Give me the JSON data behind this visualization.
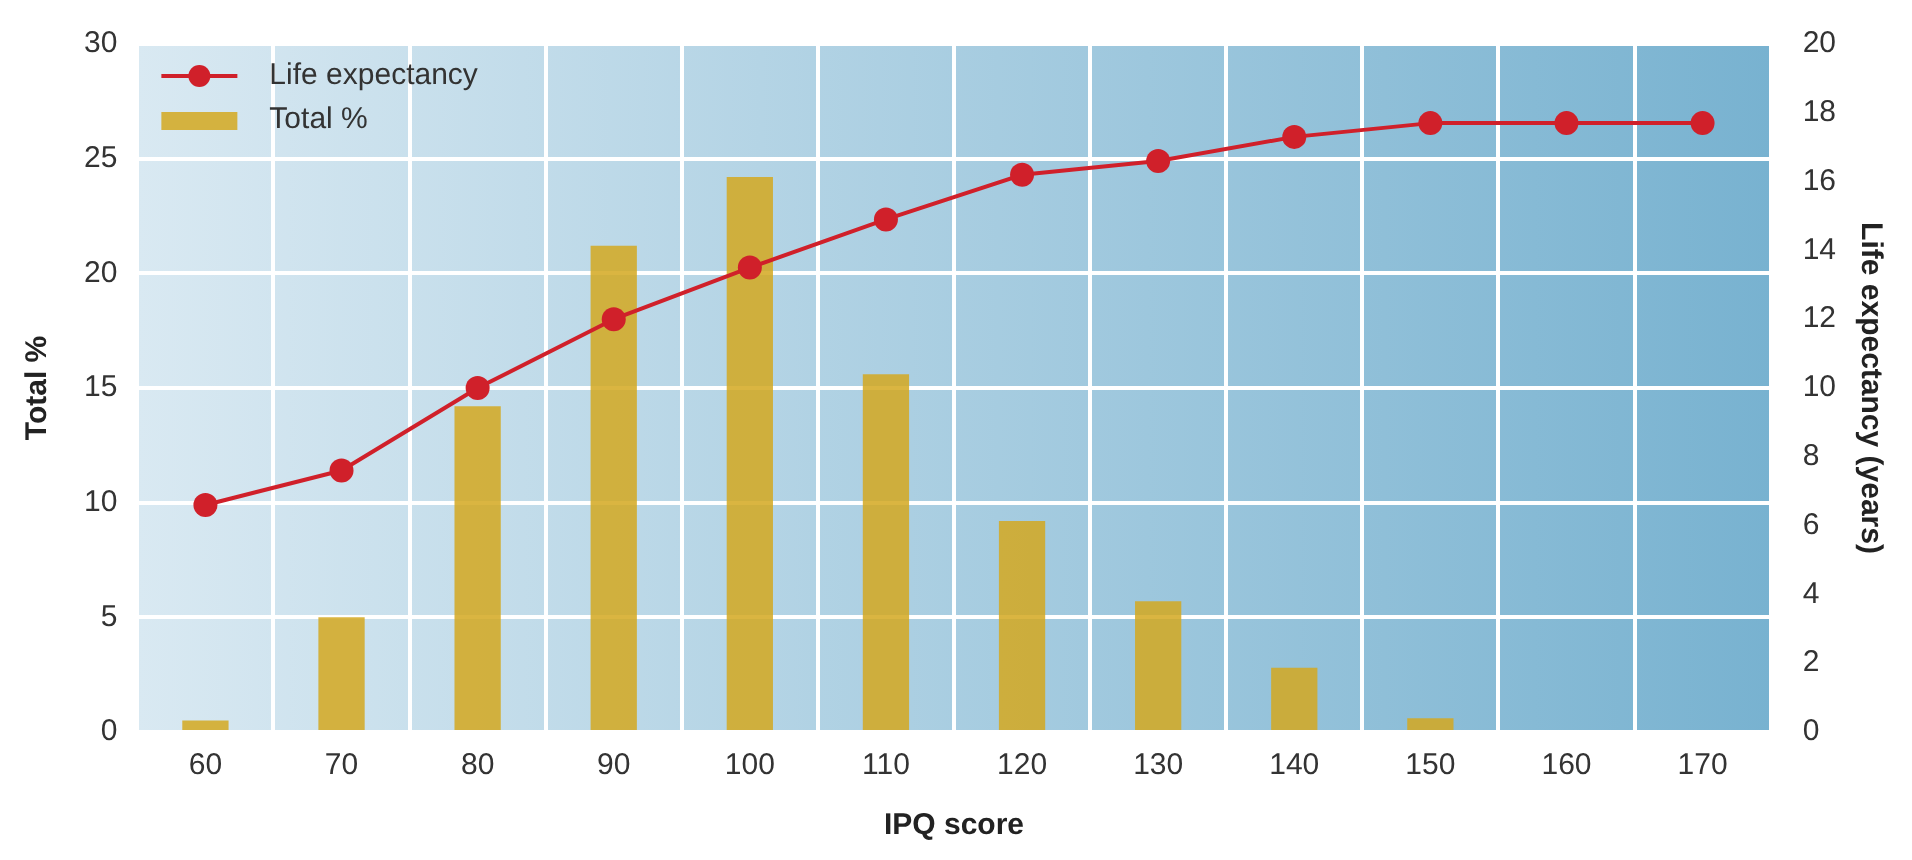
{
  "chart_data": {
    "type": "bar",
    "xlabel": "IPQ score",
    "ylabel": "Total %",
    "y2label": "Life expectancy (years)",
    "categories": [
      "60",
      "70",
      "80",
      "90",
      "100",
      "110",
      "120",
      "130",
      "140",
      "150",
      "160",
      "170"
    ],
    "series": [
      {
        "name": "Life expectancy",
        "type": "line",
        "axis": "y2",
        "color": "#d0202a",
        "marker": "circle",
        "values": [
          6.6,
          7.6,
          10.0,
          12.0,
          13.5,
          14.9,
          16.2,
          16.6,
          17.3,
          17.7,
          17.7,
          17.7
        ]
      },
      {
        "name": "Total %",
        "color": "#d4a820",
        "values": [
          0.5,
          5,
          14.2,
          21.2,
          24.2,
          15.6,
          9.2,
          5.7,
          2.8,
          0.6,
          0,
          0
        ]
      }
    ],
    "ylim": [
      0,
      30
    ],
    "yticks": [
      0,
      5,
      10,
      15,
      20,
      25,
      30
    ],
    "y2lim": [
      0,
      20
    ],
    "y2ticks": [
      0,
      2,
      4,
      6,
      8,
      10,
      12,
      14,
      16,
      18,
      20
    ],
    "grid": true,
    "legend": "top left"
  }
}
